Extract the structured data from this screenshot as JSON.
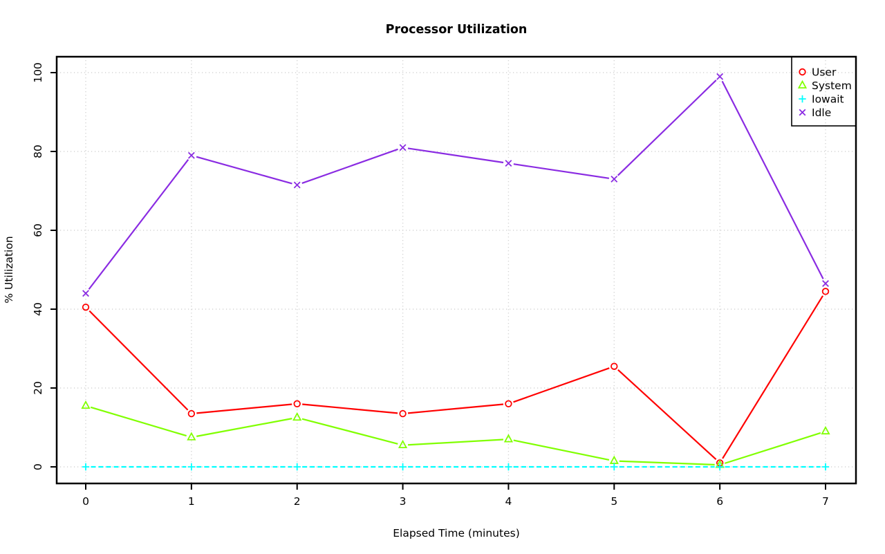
{
  "page": {
    "background": "#FFFFFF",
    "text_color": "#000000",
    "grid_color": "#D3D3D3"
  },
  "chart_data": {
    "type": "line",
    "title": "Processor Utilization",
    "xlabel": "Elapsed Time (minutes)",
    "ylabel": "% Utilization",
    "x": [
      0,
      1,
      2,
      3,
      4,
      5,
      6,
      7
    ],
    "xticks": [
      0,
      1,
      2,
      3,
      4,
      5,
      6,
      7
    ],
    "yticks": [
      0,
      20,
      40,
      60,
      80,
      100
    ],
    "xlim": [
      0,
      7
    ],
    "ylim": [
      0,
      100
    ],
    "grid": "dotted",
    "legend_position": "top-right",
    "series": [
      {
        "name": "User",
        "color": "#FF0000",
        "marker": "circle",
        "values": [
          40.5,
          13.5,
          16,
          13.5,
          16,
          25.5,
          1,
          44.5
        ]
      },
      {
        "name": "System",
        "color": "#80FF00",
        "marker": "triangle",
        "values": [
          15.5,
          7.5,
          12.5,
          5.5,
          7,
          1.5,
          0.5,
          9
        ]
      },
      {
        "name": "Iowait",
        "color": "#00FFFF",
        "marker": "plus",
        "values": [
          0,
          0,
          0,
          0,
          0,
          0,
          0,
          0
        ],
        "dashed": true
      },
      {
        "name": "Idle",
        "color": "#8A2BE2",
        "marker": "x",
        "values": [
          44,
          79,
          71.5,
          81,
          77,
          73,
          99,
          46.5
        ]
      }
    ]
  }
}
